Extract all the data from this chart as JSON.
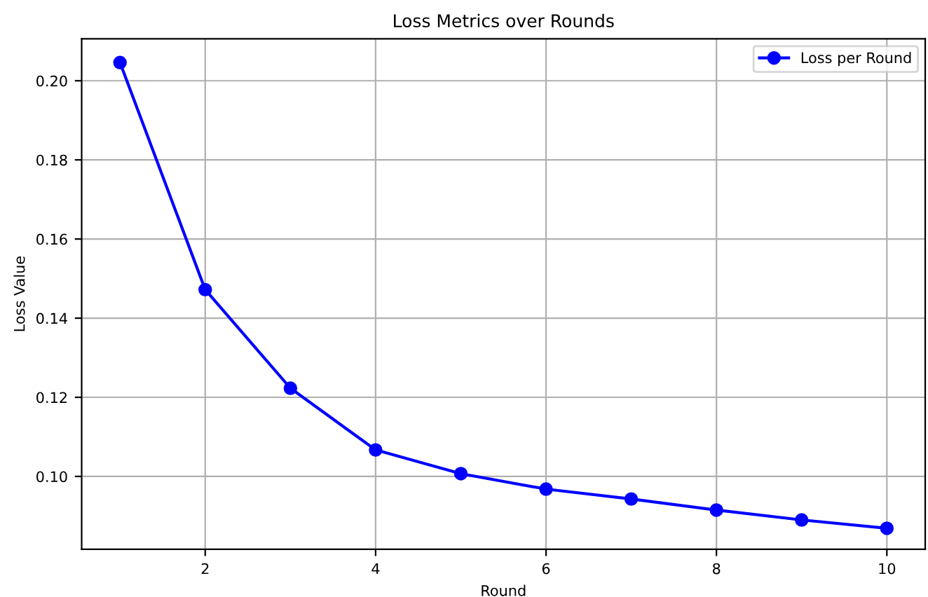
{
  "chart_data": {
    "type": "line",
    "title": "Loss Metrics over Rounds",
    "xlabel": "Round",
    "ylabel": "Loss Value",
    "x": [
      1,
      2,
      3,
      4,
      5,
      6,
      7,
      8,
      9,
      10
    ],
    "series": [
      {
        "name": "Loss per Round",
        "color": "#0000ff",
        "values": [
          0.2046,
          0.1472,
          0.1223,
          0.1067,
          0.1007,
          0.0968,
          0.0943,
          0.0915,
          0.089,
          0.0869
        ]
      }
    ],
    "xlim": [
      0.55,
      10.45
    ],
    "xticks": [
      2,
      4,
      6,
      8,
      10
    ],
    "ylim": [
      0.0816,
      0.2106
    ],
    "yticks": [
      {
        "value": 0.1,
        "label": "0.10"
      },
      {
        "value": 0.12,
        "label": "0.12"
      },
      {
        "value": 0.14,
        "label": "0.14"
      },
      {
        "value": 0.16,
        "label": "0.16"
      },
      {
        "value": 0.18,
        "label": "0.18"
      },
      {
        "value": 0.2,
        "label": "0.20"
      }
    ],
    "grid": true,
    "legend": "top right",
    "marker": "circle",
    "line_style": "solid"
  }
}
